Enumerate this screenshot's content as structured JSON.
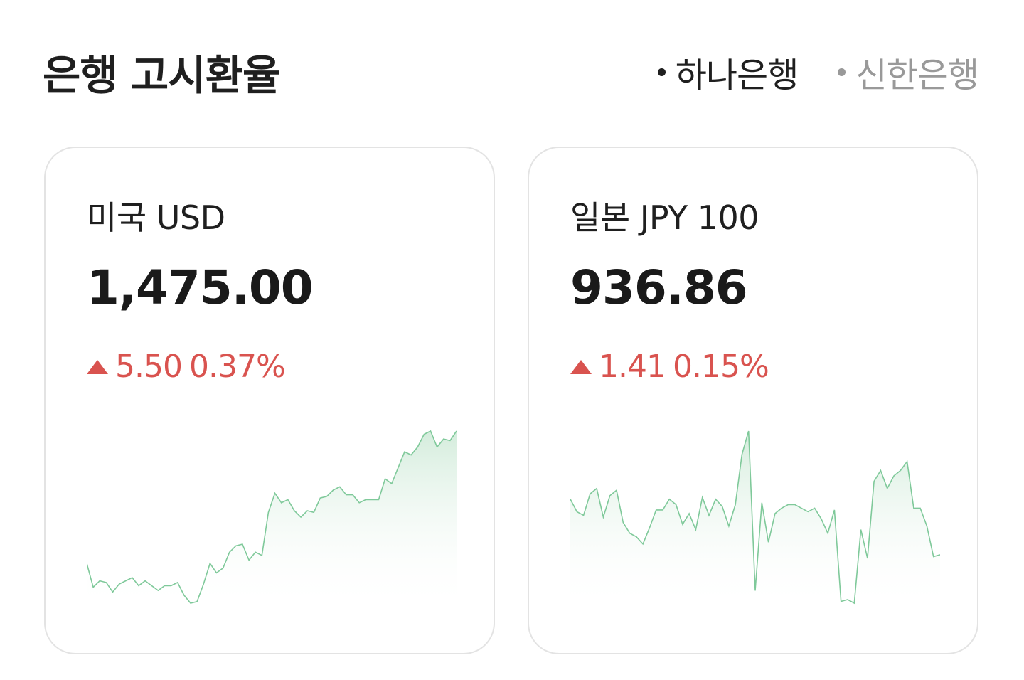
{
  "header": {
    "title": "은행 고시환율",
    "banks": [
      {
        "label": "하나은행",
        "active": true
      },
      {
        "label": "신한은행",
        "active": false
      }
    ]
  },
  "cards": [
    {
      "name": "미국 USD",
      "rate": "1,475.00",
      "change": "5.50",
      "percent": "0.37%",
      "direction": "up",
      "series": [
        28,
        13,
        17,
        16,
        10,
        15,
        17,
        19,
        14,
        17,
        14,
        11,
        14,
        14,
        16,
        8,
        3,
        4,
        15,
        28,
        22,
        25,
        35,
        39,
        40,
        30,
        35,
        33,
        60,
        72,
        66,
        68,
        61,
        57,
        61,
        60,
        69,
        70,
        74,
        76,
        71,
        71,
        66,
        68,
        68,
        68,
        81,
        78,
        88,
        98,
        96,
        101,
        109,
        111,
        101,
        106,
        105,
        111
      ],
      "line_color": "#7fc99a",
      "fill_color": "#e3f3e8"
    },
    {
      "name": "일본 JPY 100",
      "rate": "936.86",
      "change": "1.41",
      "percent": "0.15%",
      "direction": "up",
      "series": [
        62,
        55,
        53,
        65,
        68,
        52,
        64,
        67,
        49,
        43,
        41,
        37,
        46,
        56,
        56,
        62,
        59,
        48,
        54,
        45,
        63,
        53,
        62,
        58,
        47,
        59,
        87,
        100,
        11,
        60,
        38,
        54,
        57,
        59,
        59,
        57,
        55,
        57,
        51,
        43,
        56,
        5,
        6,
        4,
        45,
        29,
        72,
        78,
        68,
        75,
        78,
        83,
        57,
        57,
        47,
        30,
        31
      ],
      "line_color": "#7fc99a",
      "fill_color": "#e3f3e8"
    }
  ],
  "colors": {
    "up": "#d9534f",
    "title": "#1f1f1f",
    "inactive": "#999999",
    "card_border": "#e3e3e3"
  }
}
